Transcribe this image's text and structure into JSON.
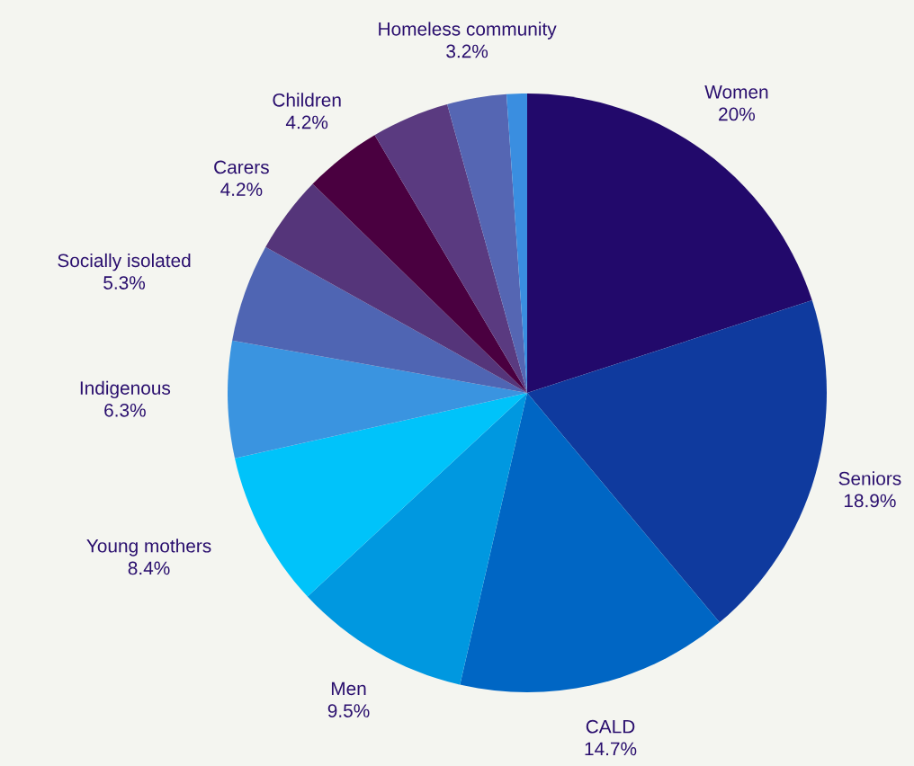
{
  "chart_data": {
    "type": "pie",
    "categories": [
      "Women",
      "Seniors",
      "CALD",
      "Men",
      "Young mothers",
      "Indigenous",
      "Socially isolated",
      "Carers",
      "Children",
      null,
      "Homeless community",
      null
    ],
    "values": [
      20,
      18.9,
      14.7,
      9.5,
      8.4,
      6.3,
      5.3,
      4.2,
      4.2,
      4.2,
      3.2,
      1.1
    ],
    "value_labels": [
      "20%",
      "18.9%",
      "14.7%",
      "9.5%",
      "8.4%",
      "6.3%",
      "5.3%",
      "4.2%",
      "4.2%",
      null,
      "3.2%",
      null
    ],
    "colors": [
      "#22096b",
      "#0f3a9e",
      "#0066c4",
      "#0098e0",
      "#00c3fa",
      "#3a94e0",
      "#4f65b3",
      "#55357a",
      "#4a0040",
      "#5a3a80",
      "#5566b3",
      "#3a8ee0"
    ]
  }
}
